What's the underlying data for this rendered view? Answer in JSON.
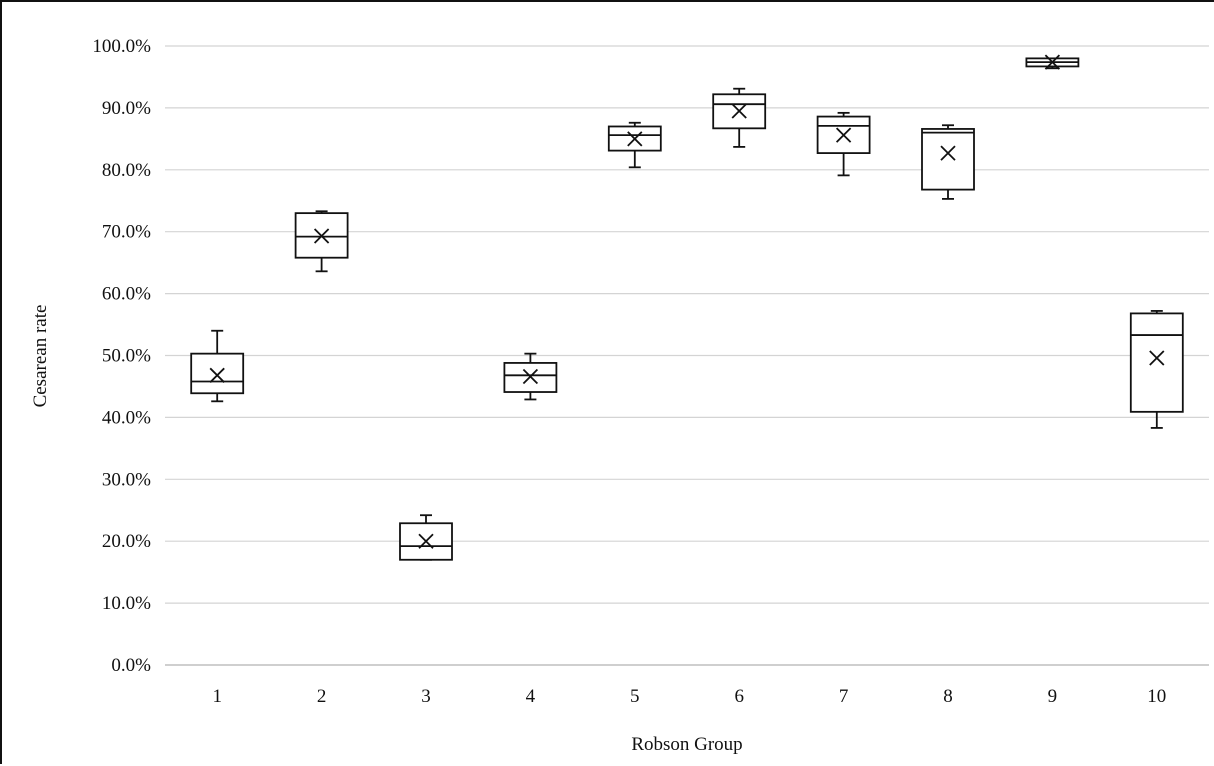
{
  "chart_data": {
    "type": "box",
    "xlabel": "Robson Group",
    "ylabel": "Cesarean rate",
    "ylim": [
      0,
      100
    ],
    "yticks": [
      0,
      10,
      20,
      30,
      40,
      50,
      60,
      70,
      80,
      90,
      100
    ],
    "ytick_labels": [
      "0.0%",
      "10.0%",
      "20.0%",
      "30.0%",
      "40.0%",
      "50.0%",
      "60.0%",
      "70.0%",
      "80.0%",
      "90.0%",
      "100.0%"
    ],
    "grid": true,
    "categories": [
      "1",
      "2",
      "3",
      "4",
      "5",
      "6",
      "7",
      "8",
      "9",
      "10"
    ],
    "boxes": [
      {
        "min": 42.6,
        "q1": 43.9,
        "median": 45.8,
        "q3": 50.3,
        "max": 54.0,
        "mean": 46.8
      },
      {
        "min": 63.6,
        "q1": 65.8,
        "median": 69.2,
        "q3": 73.0,
        "max": 73.3,
        "mean": 69.3
      },
      {
        "min": 17.0,
        "q1": 17.0,
        "median": 19.2,
        "q3": 22.9,
        "max": 24.2,
        "mean": 20.0
      },
      {
        "min": 42.9,
        "q1": 44.1,
        "median": 46.8,
        "q3": 48.8,
        "max": 50.3,
        "mean": 46.6
      },
      {
        "min": 80.4,
        "q1": 83.1,
        "median": 85.6,
        "q3": 87.0,
        "max": 87.6,
        "mean": 85.0
      },
      {
        "min": 83.7,
        "q1": 86.7,
        "median": 90.6,
        "q3": 92.2,
        "max": 93.1,
        "mean": 89.5
      },
      {
        "min": 79.1,
        "q1": 82.7,
        "median": 87.1,
        "q3": 88.6,
        "max": 89.2,
        "mean": 85.6
      },
      {
        "min": 75.3,
        "q1": 76.8,
        "median": 86.0,
        "q3": 86.6,
        "max": 87.2,
        "mean": 82.7
      },
      {
        "min": 96.4,
        "q1": 96.7,
        "median": 97.4,
        "q3": 98.0,
        "max": 98.0,
        "mean": 97.4
      },
      {
        "min": 38.3,
        "q1": 40.9,
        "median": 53.3,
        "q3": 56.8,
        "max": 57.2,
        "mean": 49.6
      }
    ]
  }
}
